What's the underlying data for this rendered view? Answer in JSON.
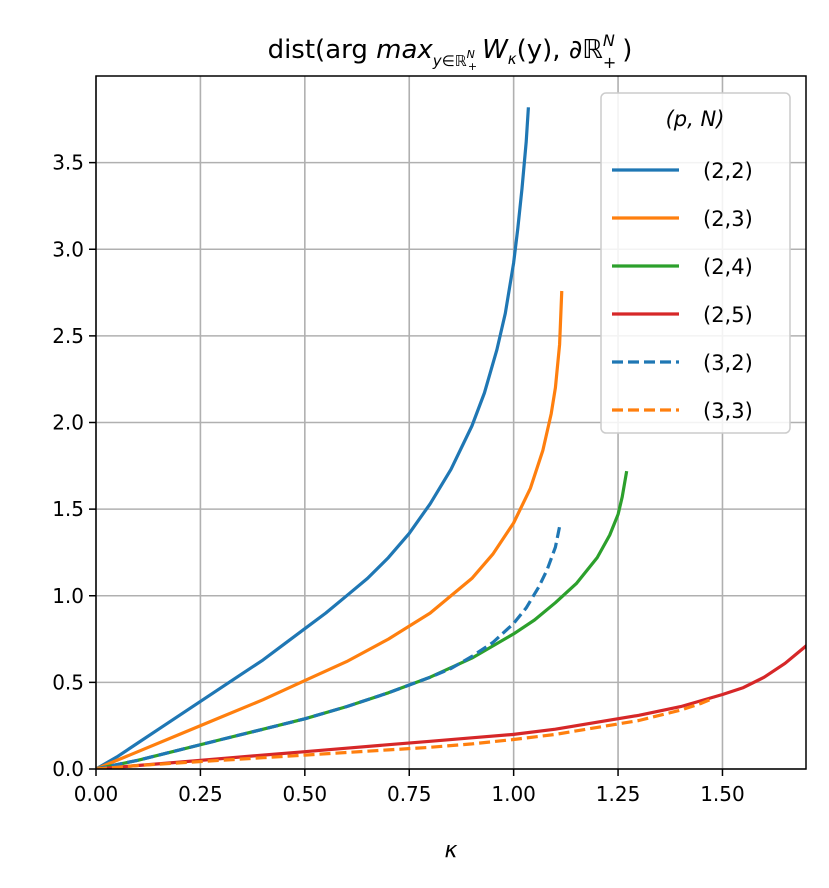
{
  "chart_data": {
    "type": "line",
    "title": "dist(arg max_{y∈ℝ₊ᴺ} W_κ(y), ∂ℝ₊ᴺ)",
    "title_parts": {
      "prefix": "dist(arg ",
      "max": "max",
      "max_sub": "y∈ℝ",
      "max_sub_sup": "N",
      "max_sub_sub": "+",
      "W": "W",
      "W_sub": "κ",
      "mid": "(y), ∂ℝ",
      "end_sup": "N",
      "end_sub": "+",
      "close": ")"
    },
    "xlabel": "κ",
    "ylabel": "",
    "xlim": [
      0.0,
      1.7
    ],
    "ylim": [
      0.0,
      4.0
    ],
    "x_ticks": [
      "0.00",
      "0.25",
      "0.50",
      "0.75",
      "1.00",
      "1.25",
      "1.50"
    ],
    "y_ticks": [
      "0.0",
      "0.5",
      "1.0",
      "1.5",
      "2.0",
      "2.5",
      "3.0",
      "3.5"
    ],
    "grid": true,
    "legend_placement": "top-right",
    "legend_title": "(p, N)",
    "series": [
      {
        "name": "(2,2)",
        "color": "#1f77b4",
        "dash": "solid",
        "x": [
          0.0,
          0.05,
          0.1,
          0.15,
          0.2,
          0.25,
          0.3,
          0.35,
          0.4,
          0.45,
          0.5,
          0.55,
          0.6,
          0.65,
          0.7,
          0.75,
          0.8,
          0.85,
          0.9,
          0.93,
          0.96,
          0.98,
          1.0,
          1.01,
          1.02,
          1.03,
          1.035
        ],
        "y": [
          0.0,
          0.07,
          0.15,
          0.23,
          0.31,
          0.39,
          0.47,
          0.55,
          0.63,
          0.72,
          0.81,
          0.9,
          1.0,
          1.1,
          1.22,
          1.36,
          1.53,
          1.73,
          1.98,
          2.17,
          2.42,
          2.63,
          2.92,
          3.12,
          3.35,
          3.62,
          3.81
        ]
      },
      {
        "name": "(2,3)",
        "color": "#ff7f0e",
        "dash": "solid",
        "x": [
          0.0,
          0.1,
          0.2,
          0.3,
          0.4,
          0.5,
          0.6,
          0.7,
          0.8,
          0.9,
          0.95,
          1.0,
          1.04,
          1.07,
          1.09,
          1.1,
          1.11,
          1.115
        ],
        "y": [
          0.0,
          0.1,
          0.2,
          0.3,
          0.4,
          0.51,
          0.62,
          0.75,
          0.9,
          1.1,
          1.24,
          1.42,
          1.62,
          1.84,
          2.05,
          2.2,
          2.45,
          2.75
        ]
      },
      {
        "name": "(2,4)",
        "color": "#2ca02c",
        "dash": "solid",
        "x": [
          0.0,
          0.1,
          0.2,
          0.3,
          0.4,
          0.5,
          0.6,
          0.7,
          0.8,
          0.9,
          1.0,
          1.05,
          1.1,
          1.15,
          1.2,
          1.23,
          1.25,
          1.26,
          1.27
        ],
        "y": [
          0.0,
          0.05,
          0.11,
          0.17,
          0.23,
          0.29,
          0.36,
          0.44,
          0.53,
          0.64,
          0.78,
          0.86,
          0.96,
          1.07,
          1.22,
          1.35,
          1.47,
          1.57,
          1.71
        ]
      },
      {
        "name": "(2,5)",
        "color": "#d62728",
        "dash": "solid",
        "x": [
          0.0,
          0.1,
          0.2,
          0.3,
          0.4,
          0.5,
          0.6,
          0.7,
          0.8,
          0.9,
          1.0,
          1.1,
          1.2,
          1.3,
          1.4,
          1.5,
          1.55,
          1.6,
          1.65,
          1.7
        ],
        "y": [
          0.0,
          0.02,
          0.04,
          0.06,
          0.08,
          0.1,
          0.12,
          0.14,
          0.16,
          0.18,
          0.2,
          0.23,
          0.27,
          0.31,
          0.36,
          0.43,
          0.47,
          0.53,
          0.61,
          0.71
        ]
      },
      {
        "name": "(3,2)",
        "color": "#1f77b4",
        "dash": "dashed",
        "x": [
          0.0,
          0.1,
          0.2,
          0.3,
          0.4,
          0.5,
          0.6,
          0.7,
          0.8,
          0.85,
          0.9,
          0.95,
          1.0,
          1.03,
          1.06,
          1.08,
          1.1,
          1.11
        ],
        "y": [
          0.0,
          0.05,
          0.11,
          0.17,
          0.23,
          0.29,
          0.36,
          0.44,
          0.53,
          0.58,
          0.65,
          0.73,
          0.84,
          0.93,
          1.05,
          1.15,
          1.28,
          1.4
        ]
      },
      {
        "name": "(3,3)",
        "color": "#ff7f0e",
        "dash": "dashed",
        "x": [
          0.0,
          0.1,
          0.2,
          0.3,
          0.4,
          0.5,
          0.6,
          0.7,
          0.8,
          0.9,
          1.0,
          1.1,
          1.2,
          1.3,
          1.4,
          1.45,
          1.48
        ],
        "y": [
          0.0,
          0.02,
          0.035,
          0.05,
          0.065,
          0.08,
          0.095,
          0.11,
          0.125,
          0.145,
          0.17,
          0.2,
          0.24,
          0.28,
          0.34,
          0.38,
          0.41
        ]
      }
    ]
  }
}
